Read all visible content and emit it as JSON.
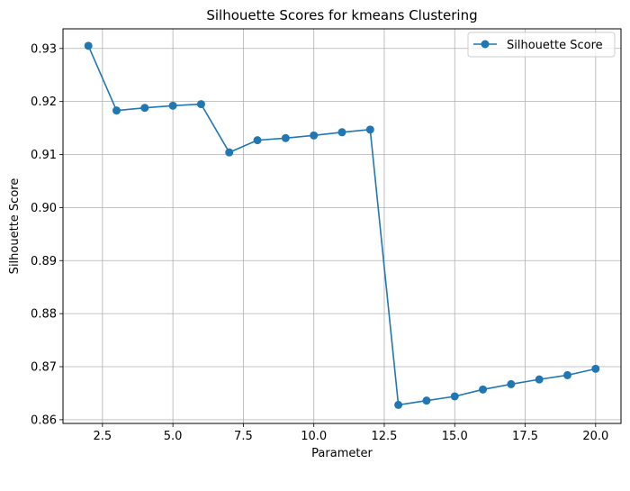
{
  "chart_data": {
    "type": "line",
    "title": "Silhouette Scores for kmeans Clustering",
    "xlabel": "Parameter",
    "ylabel": "Silhouette Score",
    "xlim": [
      1.1,
      20.9
    ],
    "ylim": [
      0.8593,
      0.9337
    ],
    "xticks": [
      2.5,
      5.0,
      7.5,
      10.0,
      12.5,
      15.0,
      17.5,
      20.0
    ],
    "xtick_labels": [
      "2.5",
      "5.0",
      "7.5",
      "10.0",
      "12.5",
      "15.0",
      "17.5",
      "20.0"
    ],
    "yticks": [
      0.86,
      0.87,
      0.88,
      0.89,
      0.9,
      0.91,
      0.92,
      0.93
    ],
    "ytick_labels": [
      "0.86",
      "0.87",
      "0.88",
      "0.89",
      "0.90",
      "0.91",
      "0.92",
      "0.93"
    ],
    "grid": true,
    "legend_position": "top-right",
    "series": [
      {
        "name": "Silhouette Score",
        "color": "#1f77b4",
        "marker": "circle",
        "x": [
          2,
          3,
          4,
          5,
          6,
          7,
          8,
          9,
          10,
          11,
          12,
          13,
          14,
          15,
          16,
          17,
          18,
          19,
          20
        ],
        "y": [
          0.9305,
          0.9183,
          0.9188,
          0.9192,
          0.9195,
          0.9104,
          0.9127,
          0.9131,
          0.9136,
          0.9142,
          0.9147,
          0.8628,
          0.8636,
          0.8644,
          0.8657,
          0.8667,
          0.8676,
          0.8684,
          0.8696
        ]
      }
    ]
  }
}
